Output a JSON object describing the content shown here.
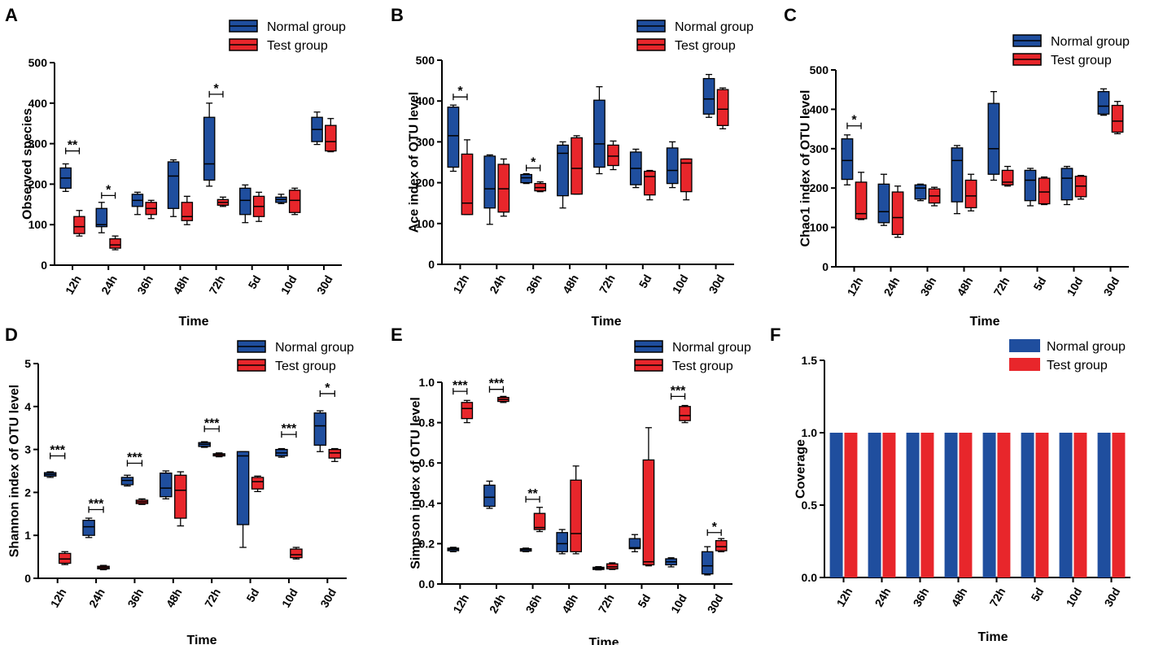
{
  "colors": {
    "normal": "#1f4e9e",
    "test": "#e8262b",
    "axis": "#000000"
  },
  "legend": {
    "normal": "Normal group",
    "test": "Test group"
  },
  "categories": [
    "12h",
    "24h",
    "36h",
    "48h",
    "72h",
    "5d",
    "10d",
    "30d"
  ],
  "chart_data": [
    {
      "id": "A",
      "letter": "A",
      "type": "box",
      "xlabel": "Time",
      "ylabel": "Observed species",
      "ylim": [
        0,
        500
      ],
      "yticks": [
        0,
        100,
        200,
        300,
        400,
        500
      ],
      "ytick_labels": [
        "0",
        "100",
        "200",
        "300",
        "400",
        "500"
      ],
      "categories": [
        "12h",
        "24h",
        "36h",
        "48h",
        "72h",
        "5d",
        "10d",
        "30d"
      ],
      "series": [
        {
          "name": "Normal group",
          "boxes": [
            [
              182,
              190,
              215,
              240,
              250
            ],
            [
              80,
              95,
              100,
              140,
              155
            ],
            [
              125,
              145,
              160,
              175,
              180
            ],
            [
              120,
              140,
              220,
              255,
              260
            ],
            [
              195,
              210,
              250,
              365,
              400
            ],
            [
              105,
              125,
              160,
              190,
              198
            ],
            [
              152,
              155,
              162,
              168,
              175
            ],
            [
              298,
              305,
              335,
              365,
              378
            ]
          ]
        },
        {
          "name": "Test group",
          "boxes": [
            [
              72,
              78,
              95,
              120,
              135
            ],
            [
              38,
              42,
              50,
              65,
              72
            ],
            [
              115,
              125,
              140,
              155,
              160
            ],
            [
              100,
              110,
              120,
              155,
              170
            ],
            [
              145,
              148,
              155,
              162,
              168
            ],
            [
              108,
              120,
              145,
              170,
              180
            ],
            [
              125,
              130,
              160,
              185,
              190
            ],
            [
              280,
              282,
              305,
              345,
              362
            ]
          ]
        }
      ],
      "significance": [
        {
          "category": "12h",
          "label": "**",
          "y": 282
        },
        {
          "category": "24h",
          "label": "*",
          "y": 172
        },
        {
          "category": "72h",
          "label": "*",
          "y": 422
        }
      ]
    },
    {
      "id": "B",
      "letter": "B",
      "type": "box",
      "xlabel": "Time",
      "ylabel": "Ace index of OTU level",
      "ylim": [
        0,
        500
      ],
      "yticks": [
        0,
        100,
        200,
        300,
        400,
        500
      ],
      "ytick_labels": [
        "0",
        "100",
        "200",
        "300",
        "400",
        "500"
      ],
      "categories": [
        "12h",
        "24h",
        "36h",
        "48h",
        "72h",
        "5d",
        "10d",
        "30d"
      ],
      "series": [
        {
          "name": "Normal group",
          "boxes": [
            [
              228,
              238,
              315,
              385,
              390
            ],
            [
              98,
              138,
              185,
              265,
              268
            ],
            [
              198,
              200,
              212,
              220,
              222
            ],
            [
              138,
              168,
              272,
              292,
              300
            ],
            [
              222,
              238,
              295,
              402,
              435
            ],
            [
              188,
              195,
              235,
              275,
              282
            ],
            [
              188,
              198,
              230,
              285,
              300
            ],
            [
              360,
              368,
              405,
              455,
              465
            ]
          ]
        },
        {
          "name": "Test group",
          "boxes": [
            [
              122,
              122,
              150,
              270,
              305
            ],
            [
              118,
              128,
              185,
              245,
              258
            ],
            [
              178,
              180,
              188,
              198,
              202
            ],
            [
              172,
              172,
              235,
              310,
              315
            ],
            [
              232,
              242,
              265,
              292,
              302
            ],
            [
              158,
              170,
              215,
              228,
              230
            ],
            [
              158,
              178,
              248,
              258,
              258
            ],
            [
              332,
              340,
              380,
              428,
              432
            ]
          ]
        }
      ],
      "significance": [
        {
          "category": "12h",
          "label": "*",
          "y": 410
        },
        {
          "category": "36h",
          "label": "*",
          "y": 236
        }
      ]
    },
    {
      "id": "C",
      "letter": "C",
      "type": "box",
      "xlabel": "Time",
      "ylabel": "Chao1 index of OTU level",
      "ylim": [
        0,
        500
      ],
      "yticks": [
        0,
        100,
        200,
        300,
        400,
        500
      ],
      "ytick_labels": [
        "0",
        "100",
        "200",
        "300",
        "400",
        "500"
      ],
      "categories": [
        "12h",
        "24h",
        "36h",
        "48h",
        "72h",
        "5d",
        "10d",
        "30d"
      ],
      "series": [
        {
          "name": "Normal group",
          "boxes": [
            [
              208,
              222,
              270,
              325,
              335
            ],
            [
              105,
              112,
              140,
              210,
              235
            ],
            [
              168,
              172,
              200,
              208,
              210
            ],
            [
              135,
              165,
              270,
              302,
              308
            ],
            [
              220,
              235,
              300,
              415,
              445
            ],
            [
              155,
              168,
              220,
              245,
              250
            ],
            [
              158,
              170,
              225,
              250,
              255
            ],
            [
              385,
              388,
              408,
              445,
              452
            ]
          ]
        },
        {
          "name": "Test group",
          "boxes": [
            [
              120,
              122,
              135,
              215,
              240
            ],
            [
              75,
              82,
              125,
              190,
              205
            ],
            [
              155,
              162,
              180,
              198,
              202
            ],
            [
              142,
              150,
              180,
              220,
              235
            ],
            [
              205,
              208,
              215,
              245,
              255
            ],
            [
              158,
              160,
              190,
              225,
              228
            ],
            [
              172,
              178,
              205,
              230,
              232
            ],
            [
              338,
              342,
              370,
              410,
              420
            ]
          ]
        }
      ],
      "significance": [
        {
          "category": "12h",
          "label": "*",
          "y": 358
        }
      ]
    },
    {
      "id": "D",
      "letter": "D",
      "type": "box",
      "xlabel": "Time",
      "ylabel": "Shannon index of OTU level",
      "ylim": [
        0,
        5
      ],
      "yticks": [
        0,
        1,
        2,
        3,
        4,
        5
      ],
      "ytick_labels": [
        "0",
        "1",
        "2",
        "3",
        "4",
        "5"
      ],
      "categories": [
        "12h",
        "24h",
        "36h",
        "48h",
        "72h",
        "5d",
        "10d",
        "30d"
      ],
      "series": [
        {
          "name": "Normal group",
          "boxes": [
            [
              2.35,
              2.38,
              2.42,
              2.46,
              2.48
            ],
            [
              0.95,
              1.0,
              1.2,
              1.35,
              1.4
            ],
            [
              2.15,
              2.18,
              2.28,
              2.35,
              2.4
            ],
            [
              1.85,
              1.9,
              2.1,
              2.45,
              2.5
            ],
            [
              3.05,
              3.07,
              3.12,
              3.16,
              3.18
            ],
            [
              0.72,
              1.25,
              2.85,
              2.95,
              2.95
            ],
            [
              2.82,
              2.85,
              2.92,
              3.0,
              3.02
            ],
            [
              2.95,
              3.1,
              3.55,
              3.85,
              3.9
            ]
          ]
        },
        {
          "name": "Test group",
          "boxes": [
            [
              0.32,
              0.35,
              0.45,
              0.58,
              0.62
            ],
            [
              0.2,
              0.22,
              0.25,
              0.28,
              0.3
            ],
            [
              1.72,
              1.74,
              1.78,
              1.82,
              1.85
            ],
            [
              1.22,
              1.4,
              2.05,
              2.4,
              2.48
            ],
            [
              2.83,
              2.85,
              2.88,
              2.9,
              2.92
            ],
            [
              2.02,
              2.08,
              2.25,
              2.35,
              2.38
            ],
            [
              0.45,
              0.48,
              0.55,
              0.68,
              0.72
            ],
            [
              2.72,
              2.8,
              2.92,
              3.0,
              3.02
            ]
          ]
        }
      ],
      "significance": [
        {
          "category": "12h",
          "label": "***",
          "y": 2.85
        },
        {
          "category": "24h",
          "label": "***",
          "y": 1.6
        },
        {
          "category": "36h",
          "label": "***",
          "y": 2.68
        },
        {
          "category": "72h",
          "label": "***",
          "y": 3.48
        },
        {
          "category": "10d",
          "label": "***",
          "y": 3.35
        },
        {
          "category": "30d",
          "label": "*",
          "y": 4.3
        }
      ]
    },
    {
      "id": "E",
      "letter": "E",
      "type": "box",
      "xlabel": "Time",
      "ylabel": "Simpson index of OTU level",
      "ylim": [
        0,
        1.0
      ],
      "yticks": [
        0,
        0.2,
        0.4,
        0.6,
        0.8,
        1.0
      ],
      "ytick_labels": [
        "0.0",
        "0.2",
        "0.4",
        "0.6",
        "0.8",
        "1.0"
      ],
      "categories": [
        "12h",
        "24h",
        "36h",
        "48h",
        "72h",
        "5d",
        "10d",
        "30d"
      ],
      "series": [
        {
          "name": "Normal group",
          "boxes": [
            [
              0.16,
              0.165,
              0.172,
              0.178,
              0.182
            ],
            [
              0.375,
              0.385,
              0.43,
              0.49,
              0.51
            ],
            [
              0.16,
              0.163,
              0.17,
              0.175,
              0.178
            ],
            [
              0.15,
              0.16,
              0.2,
              0.255,
              0.27
            ],
            [
              0.07,
              0.072,
              0.078,
              0.083,
              0.086
            ],
            [
              0.16,
              0.175,
              0.18,
              0.225,
              0.245
            ],
            [
              0.085,
              0.095,
              0.11,
              0.125,
              0.13
            ],
            [
              0.045,
              0.05,
              0.09,
              0.16,
              0.185
            ]
          ]
        },
        {
          "name": "Test group",
          "boxes": [
            [
              0.8,
              0.82,
              0.87,
              0.9,
              0.91
            ],
            [
              0.9,
              0.905,
              0.915,
              0.925,
              0.93
            ],
            [
              0.26,
              0.27,
              0.28,
              0.35,
              0.38
            ],
            [
              0.15,
              0.16,
              0.25,
              0.515,
              0.585
            ],
            [
              0.072,
              0.075,
              0.085,
              0.1,
              0.105
            ],
            [
              0.09,
              0.095,
              0.11,
              0.615,
              0.775
            ],
            [
              0.8,
              0.81,
              0.835,
              0.88,
              0.885
            ],
            [
              0.16,
              0.165,
              0.185,
              0.215,
              0.225
            ]
          ]
        }
      ],
      "significance": [
        {
          "category": "12h",
          "label": "***",
          "y": 0.955
        },
        {
          "category": "24h",
          "label": "***",
          "y": 0.965
        },
        {
          "category": "36h",
          "label": "**",
          "y": 0.42
        },
        {
          "category": "10d",
          "label": "***",
          "y": 0.93
        },
        {
          "category": "30d",
          "label": "*",
          "y": 0.255
        }
      ]
    },
    {
      "id": "F",
      "letter": "F",
      "type": "bar",
      "xlabel": "Time",
      "ylabel": "Coverage",
      "ylim": [
        0,
        1.5
      ],
      "yticks": [
        0,
        0.5,
        1.0,
        1.5
      ],
      "ytick_labels": [
        "0.0",
        "0.5",
        "1.0",
        "1.5"
      ],
      "categories": [
        "12h",
        "24h",
        "36h",
        "48h",
        "72h",
        "5d",
        "10d",
        "30d"
      ],
      "series": [
        {
          "name": "Normal group",
          "values": [
            1.0,
            1.0,
            1.0,
            1.0,
            1.0,
            1.0,
            1.0,
            1.0
          ]
        },
        {
          "name": "Test group",
          "values": [
            1.0,
            1.0,
            1.0,
            1.0,
            1.0,
            1.0,
            1.0,
            1.0
          ]
        }
      ],
      "significance": []
    }
  ]
}
